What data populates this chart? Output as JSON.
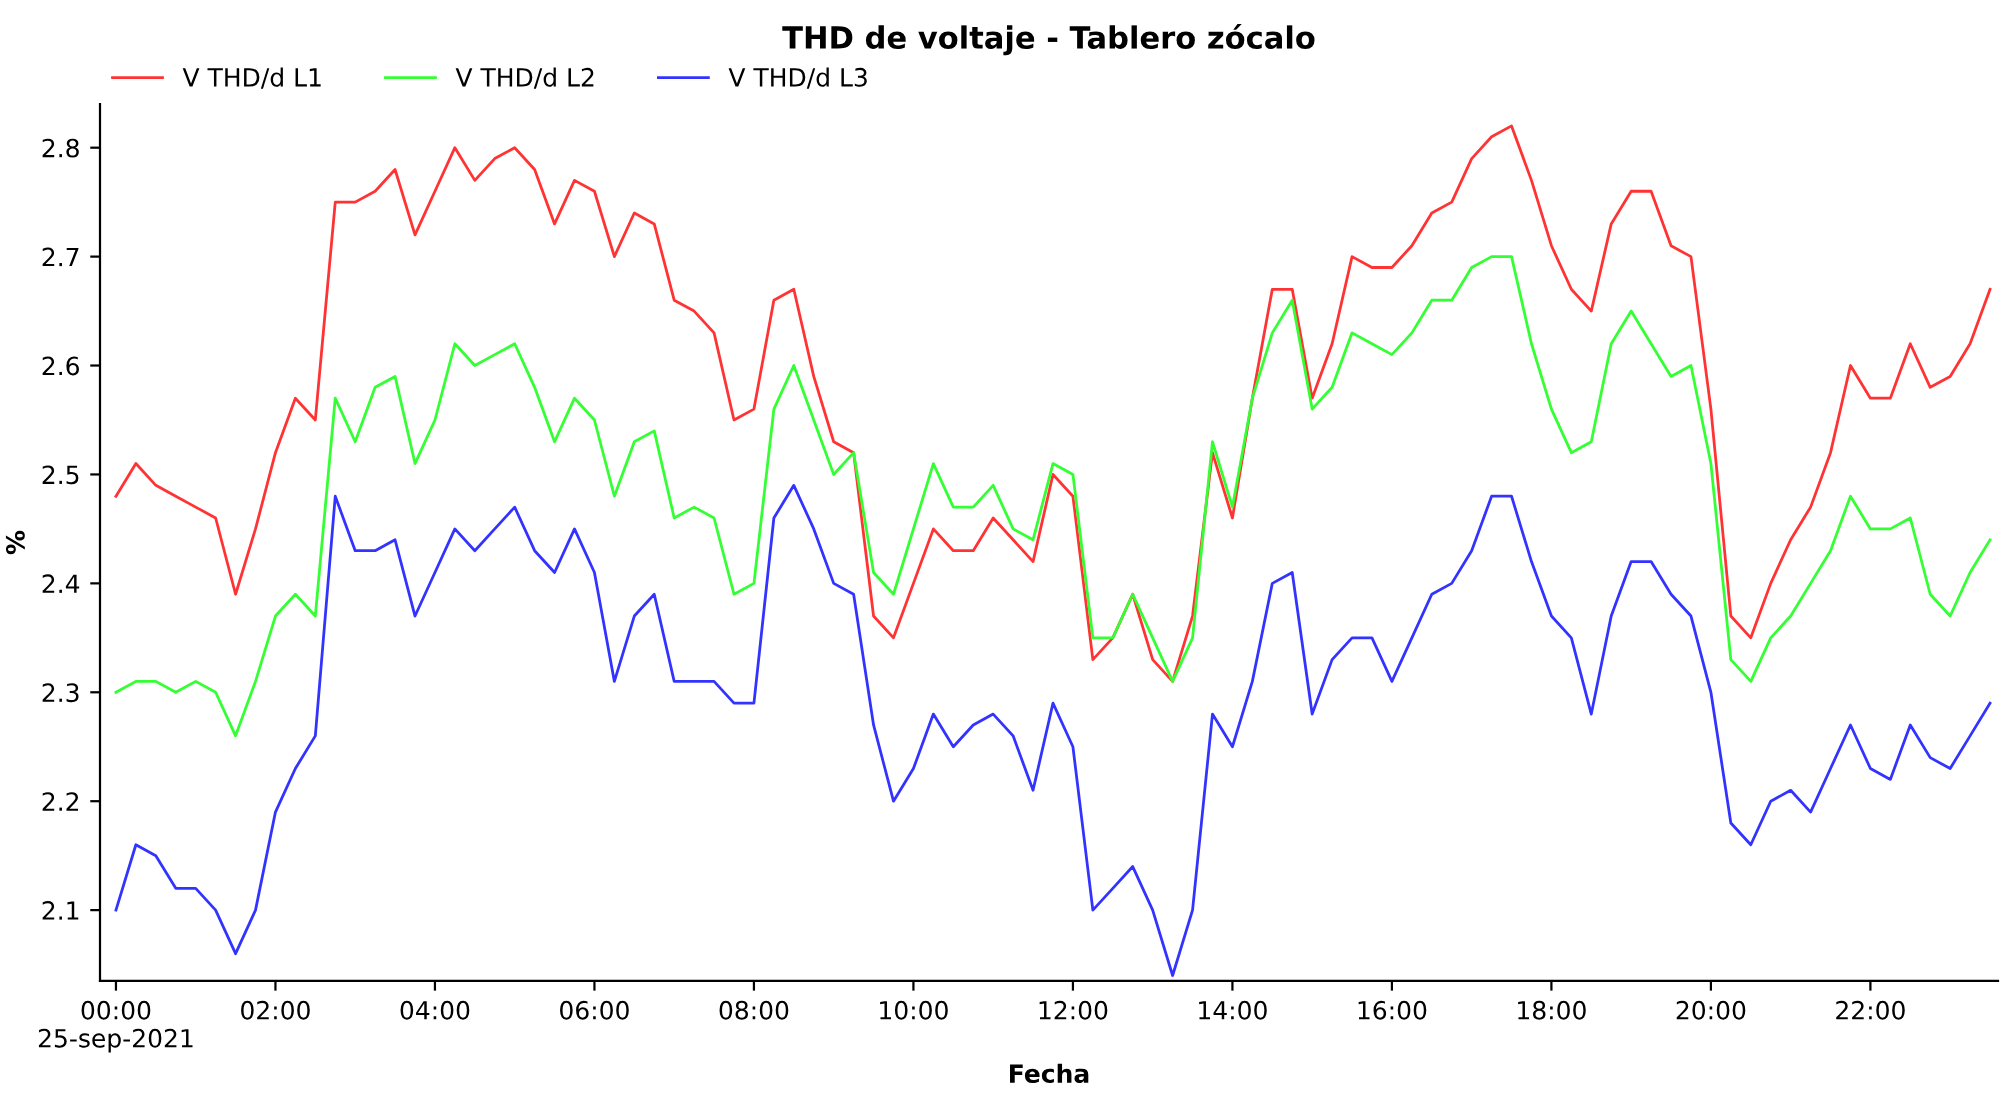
{
  "chart_data": {
    "type": "line",
    "title": "THD de voltaje - Tablero zócalo",
    "xlabel": "Fecha",
    "ylabel": "%",
    "x": [
      0,
      0.25,
      0.5,
      0.75,
      1,
      1.25,
      1.5,
      1.75,
      2,
      2.25,
      2.5,
      2.75,
      3,
      3.25,
      3.5,
      3.75,
      4,
      4.25,
      4.5,
      4.75,
      5,
      5.25,
      5.5,
      5.75,
      6,
      6.25,
      6.5,
      6.75,
      7,
      7.25,
      7.5,
      7.75,
      8,
      8.25,
      8.5,
      8.75,
      9,
      9.25,
      9.5,
      9.75,
      10,
      10.25,
      10.5,
      10.75,
      11,
      11.25,
      11.5,
      11.75,
      12,
      12.25,
      12.5,
      12.75,
      13,
      13.25,
      13.5,
      13.75,
      14,
      14.25,
      14.5,
      14.75,
      15,
      15.25,
      15.5,
      15.75,
      16,
      16.25,
      16.5,
      16.75,
      17,
      17.25,
      17.5,
      17.75,
      18,
      18.25,
      18.5,
      18.75,
      19,
      19.25,
      19.5,
      19.75,
      20,
      20.25,
      20.5,
      20.75,
      21,
      21.25,
      21.5,
      21.75,
      22,
      22.25,
      22.5,
      22.75,
      23,
      23.25,
      23.5
    ],
    "series": [
      {
        "name": "V THD/d L1",
        "color": "#ff3333",
        "values": [
          2.48,
          2.51,
          2.49,
          2.48,
          2.47,
          2.46,
          2.39,
          2.45,
          2.52,
          2.57,
          2.55,
          2.75,
          2.75,
          2.76,
          2.78,
          2.72,
          2.76,
          2.8,
          2.77,
          2.79,
          2.8,
          2.78,
          2.73,
          2.77,
          2.76,
          2.7,
          2.74,
          2.73,
          2.66,
          2.65,
          2.63,
          2.55,
          2.56,
          2.66,
          2.67,
          2.59,
          2.53,
          2.52,
          2.37,
          2.35,
          2.4,
          2.45,
          2.43,
          2.43,
          2.46,
          2.44,
          2.42,
          2.5,
          2.48,
          2.33,
          2.35,
          2.39,
          2.33,
          2.31,
          2.37,
          2.52,
          2.46,
          2.57,
          2.67,
          2.67,
          2.57,
          2.62,
          2.7,
          2.69,
          2.69,
          2.71,
          2.74,
          2.75,
          2.79,
          2.81,
          2.82,
          2.77,
          2.71,
          2.67,
          2.65,
          2.73,
          2.76,
          2.76,
          2.71,
          2.7,
          2.56,
          2.37,
          2.35,
          2.4,
          2.44,
          2.47,
          2.52,
          2.6,
          2.57,
          2.57,
          2.62,
          2.58,
          2.59,
          2.62,
          2.67
        ]
      },
      {
        "name": "V THD/d L2",
        "color": "#33ff33",
        "values": [
          2.3,
          2.31,
          2.31,
          2.3,
          2.31,
          2.3,
          2.26,
          2.31,
          2.37,
          2.39,
          2.37,
          2.57,
          2.53,
          2.58,
          2.59,
          2.51,
          2.55,
          2.62,
          2.6,
          2.61,
          2.62,
          2.58,
          2.53,
          2.57,
          2.55,
          2.48,
          2.53,
          2.54,
          2.46,
          2.47,
          2.46,
          2.39,
          2.4,
          2.56,
          2.6,
          2.55,
          2.5,
          2.52,
          2.41,
          2.39,
          2.45,
          2.51,
          2.47,
          2.47,
          2.49,
          2.45,
          2.44,
          2.51,
          2.5,
          2.35,
          2.35,
          2.39,
          2.35,
          2.31,
          2.35,
          2.53,
          2.47,
          2.57,
          2.63,
          2.66,
          2.56,
          2.58,
          2.63,
          2.62,
          2.61,
          2.63,
          2.66,
          2.66,
          2.69,
          2.7,
          2.7,
          2.62,
          2.56,
          2.52,
          2.53,
          2.62,
          2.65,
          2.62,
          2.59,
          2.6,
          2.51,
          2.33,
          2.31,
          2.35,
          2.37,
          2.4,
          2.43,
          2.48,
          2.45,
          2.45,
          2.46,
          2.39,
          2.37,
          2.41,
          2.44
        ]
      },
      {
        "name": "V THD/d L3",
        "color": "#3333ff",
        "values": [
          2.1,
          2.16,
          2.15,
          2.12,
          2.12,
          2.1,
          2.06,
          2.1,
          2.19,
          2.23,
          2.26,
          2.48,
          2.43,
          2.43,
          2.44,
          2.37,
          2.41,
          2.45,
          2.43,
          2.45,
          2.47,
          2.43,
          2.41,
          2.45,
          2.41,
          2.31,
          2.37,
          2.39,
          2.31,
          2.31,
          2.31,
          2.29,
          2.29,
          2.46,
          2.49,
          2.45,
          2.4,
          2.39,
          2.27,
          2.2,
          2.23,
          2.28,
          2.25,
          2.27,
          2.28,
          2.26,
          2.21,
          2.29,
          2.25,
          2.1,
          2.12,
          2.14,
          2.1,
          2.04,
          2.1,
          2.28,
          2.25,
          2.31,
          2.4,
          2.41,
          2.28,
          2.33,
          2.35,
          2.35,
          2.31,
          2.35,
          2.39,
          2.4,
          2.43,
          2.48,
          2.48,
          2.42,
          2.37,
          2.35,
          2.28,
          2.37,
          2.42,
          2.42,
          2.39,
          2.37,
          2.3,
          2.18,
          2.16,
          2.2,
          2.21,
          2.19,
          2.23,
          2.27,
          2.23,
          2.22,
          2.27,
          2.24,
          2.23,
          2.26,
          2.29
        ]
      }
    ],
    "xlim": [
      -0.2,
      23.6
    ],
    "xticks": [
      {
        "value": 0,
        "label": "00:00\n25-sep-2021"
      },
      {
        "value": 2,
        "label": "02:00"
      },
      {
        "value": 4,
        "label": "04:00"
      },
      {
        "value": 6,
        "label": "06:00"
      },
      {
        "value": 8,
        "label": "08:00"
      },
      {
        "value": 10,
        "label": "10:00"
      },
      {
        "value": 12,
        "label": "12:00"
      },
      {
        "value": 14,
        "label": "14:00"
      },
      {
        "value": 16,
        "label": "16:00"
      },
      {
        "value": 18,
        "label": "18:00"
      },
      {
        "value": 20,
        "label": "20:00"
      },
      {
        "value": 22,
        "label": "22:00"
      }
    ],
    "ylim": [
      2.035,
      2.84
    ],
    "yticks": [
      2.1,
      2.2,
      2.3,
      2.4,
      2.5,
      2.6,
      2.7,
      2.8
    ],
    "grid": false,
    "legend": "top left",
    "marker": "none",
    "line_style": "solid"
  }
}
